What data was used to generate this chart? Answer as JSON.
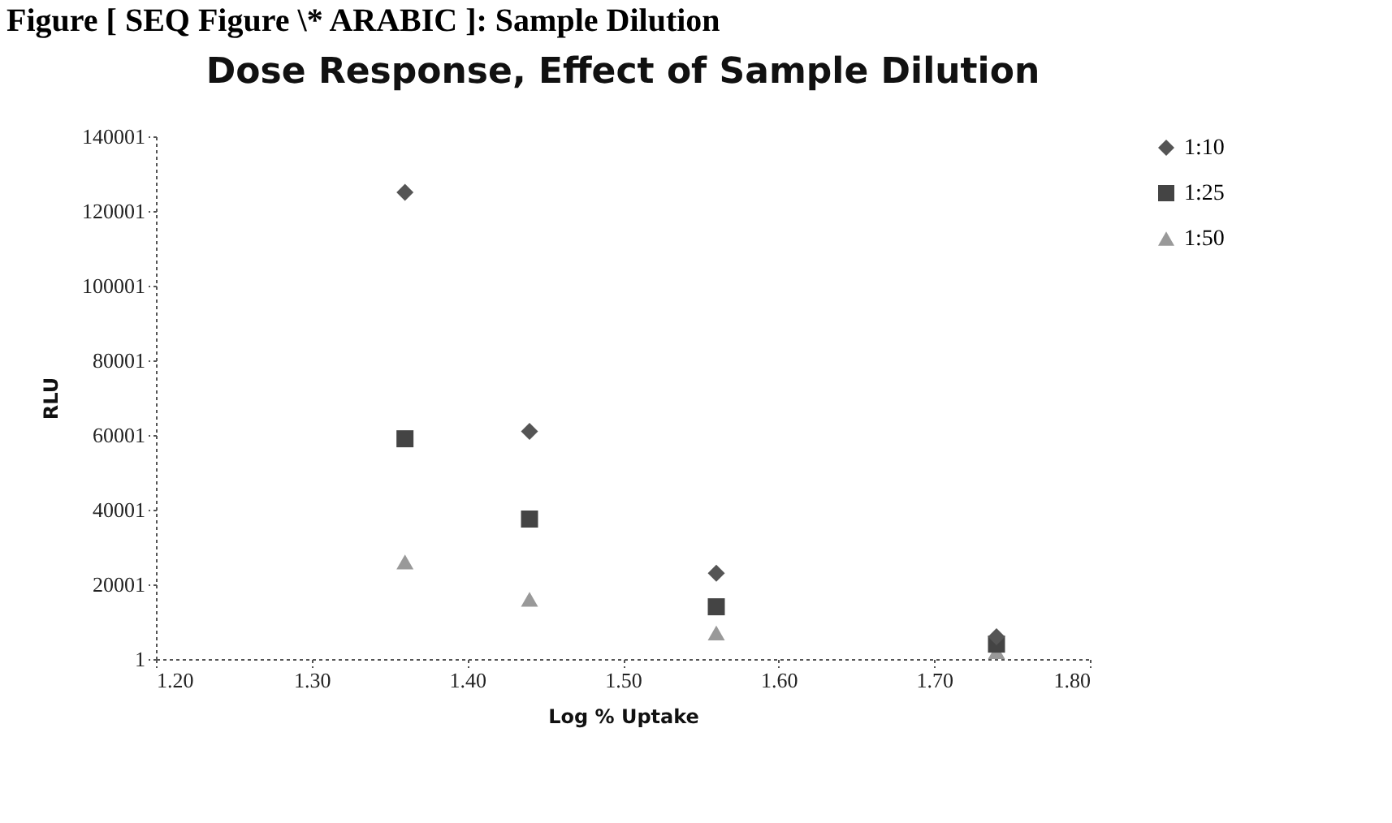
{
  "chart_data": {
    "type": "scatter",
    "title": "Dose Response, Effect of Sample Dilution",
    "xlabel": "Log % Uptake",
    "ylabel": "RLU",
    "annotations": [
      "Figure [ SEQ Figure \\* ARABIC ]: Sample Dilution"
    ],
    "x": [
      1.36,
      1.44,
      1.56,
      1.74
    ],
    "series": [
      {
        "name": "1:10",
        "color": "#555555",
        "marker": "diamond",
        "values": [
          125000,
          61000,
          23000,
          6000
        ]
      },
      {
        "name": "1:25",
        "color": "#444444",
        "marker": "square",
        "values": [
          59000,
          37500,
          14000,
          4000
        ]
      },
      {
        "name": "1:50",
        "color": "#999999",
        "marker": "triangle",
        "values": [
          26000,
          16000,
          7000,
          2000
        ]
      }
    ],
    "xlim": [
      1.2,
      1.8
    ],
    "xticks": [
      {
        "value": 1.2,
        "label": "1.20"
      },
      {
        "value": 1.3,
        "label": "1.30"
      },
      {
        "value": 1.4,
        "label": "1.40"
      },
      {
        "value": 1.5,
        "label": "1.50"
      },
      {
        "value": 1.6,
        "label": "1.60"
      },
      {
        "value": 1.7,
        "label": "1.70"
      },
      {
        "value": 1.8,
        "label": "1.80"
      }
    ],
    "ylim": [
      1,
      140001
    ],
    "yticks": [
      1,
      20001,
      40001,
      60001,
      80001,
      100001,
      120001,
      140001
    ],
    "grid": false,
    "legend": "right"
  }
}
